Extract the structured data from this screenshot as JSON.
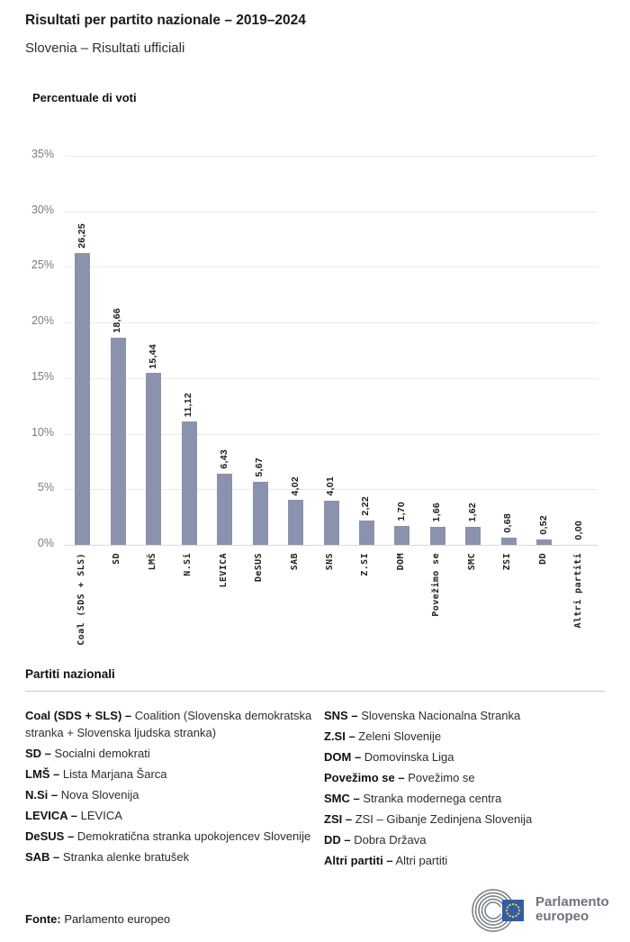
{
  "header": {
    "title": "Risultati per partito nazionale – 2019–2024",
    "subtitle": "Slovenia – Risultati ufficiali"
  },
  "chart_data": {
    "type": "bar",
    "title": "Percentuale di voti",
    "categories": [
      "Coal (SDS + SLS)",
      "SD",
      "LMŠ",
      "N.Si",
      "LEVICA",
      "DeSUS",
      "SAB",
      "SNS",
      "Z.SI",
      "DOM",
      "Povežimo se",
      "SMC",
      "ZSI",
      "DD",
      "Altri partiti"
    ],
    "values": [
      26.25,
      18.66,
      15.44,
      11.12,
      6.43,
      5.67,
      4.02,
      4.01,
      2.22,
      1.7,
      1.66,
      1.62,
      0.68,
      0.52,
      0.0
    ],
    "value_labels": [
      "26,25",
      "18,66",
      "15,44",
      "11,12",
      "6,43",
      "5,67",
      "4,02",
      "4,01",
      "2,22",
      "1,70",
      "1,66",
      "1,62",
      "0,68",
      "0,52",
      "0,00"
    ],
    "ylabel": "Percentuale di voti",
    "xlabel": "",
    "ylim": [
      0,
      35
    ],
    "ytick_step": 5,
    "ytick_suffix": "%",
    "grid": true,
    "legend_position": "none",
    "bar_color": "#8A92AD",
    "grid_color": "#EAEAEA",
    "axis_color": "#D6DAE2"
  },
  "legend": {
    "title": "Partiti nazionali",
    "columns": [
      [
        {
          "abbr": "Coal (SDS + SLS) –",
          "name": "Coalition (Slovenska demokratska stranka + Slovenska ljudska stranka)"
        },
        {
          "abbr": "SD –",
          "name": "Socialni demokrati"
        },
        {
          "abbr": "LMŠ –",
          "name": "Lista Marjana Šarca"
        },
        {
          "abbr": "N.Si –",
          "name": "Nova Slovenija"
        },
        {
          "abbr": "LEVICA –",
          "name": "LEVICA"
        },
        {
          "abbr": "DeSUS –",
          "name": "Demokratična stranka upokojencev Slovenije"
        },
        {
          "abbr": "SAB –",
          "name": "Stranka alenke bratušek"
        }
      ],
      [
        {
          "abbr": "SNS –",
          "name": "Slovenska Nacionalna Stranka"
        },
        {
          "abbr": "Z.SI –",
          "name": "Zeleni Slovenije"
        },
        {
          "abbr": "DOM –",
          "name": "Domovinska Liga"
        },
        {
          "abbr": "Povežimo se –",
          "name": "Povežimo se"
        },
        {
          "abbr": "SMC –",
          "name": "Stranka modernega centra"
        },
        {
          "abbr": "ZSI –",
          "name": "ZSI – Gibanje Zedinjena Slovenija"
        },
        {
          "abbr": "DD –",
          "name": "Dobra Država"
        },
        {
          "abbr": "Altri partiti –",
          "name": "Altri partiti"
        }
      ]
    ]
  },
  "footer": {
    "source_label": "Fonte:",
    "source_value": " Parlamento europeo",
    "logo_line1": "Parlamento",
    "logo_line2": "europeo",
    "logo_flag_color": "#2F5DA9",
    "logo_star_color": "#FFD013",
    "logo_arc_color": "#7D838A"
  }
}
